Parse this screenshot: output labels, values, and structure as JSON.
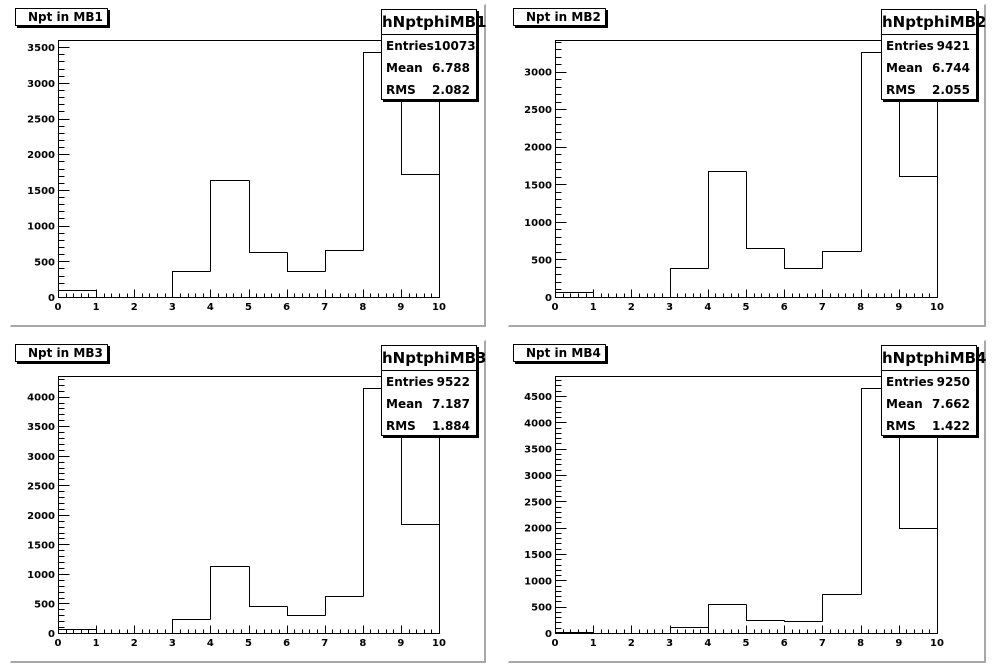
{
  "chart_data": [
    {
      "type": "histogram",
      "title": "Npt in MB1",
      "stats": {
        "name": "hNptphiMB1",
        "entries_label": "Entries",
        "entries": "10073",
        "mean_label": "Mean",
        "mean": "6.788",
        "rms_label": "RMS",
        "rms": "2.082"
      },
      "xlim": [
        0,
        10
      ],
      "ylim": [
        0,
        3600
      ],
      "yticks_major": [
        0,
        500,
        1000,
        1500,
        2000,
        2500,
        3000,
        3500
      ],
      "ytick_labels": [
        "0",
        "500",
        "1000",
        "1500",
        "2000",
        "2500",
        "3000",
        "3500"
      ],
      "xticks_major": [
        0,
        1,
        2,
        3,
        4,
        5,
        6,
        7,
        8,
        9,
        10
      ],
      "xtick_labels": [
        "0",
        "1",
        "2",
        "3",
        "4",
        "5",
        "6",
        "7",
        "8",
        "9",
        "10"
      ],
      "bin_edges": [
        0,
        1,
        2,
        3,
        4,
        5,
        6,
        7,
        8,
        9,
        10
      ],
      "values": [
        100,
        0,
        0,
        370,
        1640,
        630,
        370,
        660,
        3430,
        1720
      ]
    },
    {
      "type": "histogram",
      "title": "Npt in MB2",
      "stats": {
        "name": "hNptphiMB2",
        "entries_label": "Entries",
        "entries": "9421",
        "mean_label": "Mean",
        "mean": "6.744",
        "rms_label": "RMS",
        "rms": "2.055"
      },
      "xlim": [
        0,
        10
      ],
      "ylim": [
        0,
        3420
      ],
      "yticks_major": [
        0,
        500,
        1000,
        1500,
        2000,
        2500,
        3000
      ],
      "ytick_labels": [
        "0",
        "500",
        "1000",
        "1500",
        "2000",
        "2500",
        "3000"
      ],
      "xticks_major": [
        0,
        1,
        2,
        3,
        4,
        5,
        6,
        7,
        8,
        9,
        10
      ],
      "xtick_labels": [
        "0",
        "1",
        "2",
        "3",
        "4",
        "5",
        "6",
        "7",
        "8",
        "9",
        "10"
      ],
      "bin_edges": [
        0,
        1,
        2,
        3,
        4,
        5,
        6,
        7,
        8,
        9,
        10
      ],
      "values": [
        70,
        0,
        0,
        380,
        1680,
        650,
        380,
        610,
        3260,
        1610
      ]
    },
    {
      "type": "histogram",
      "title": "Npt in MB3",
      "stats": {
        "name": "hNptphiMB3",
        "entries_label": "Entries",
        "entries": "9522",
        "mean_label": "Mean",
        "mean": "7.187",
        "rms_label": "RMS",
        "rms": "1.884"
      },
      "xlim": [
        0,
        10
      ],
      "ylim": [
        0,
        4350
      ],
      "yticks_major": [
        0,
        500,
        1000,
        1500,
        2000,
        2500,
        3000,
        3500,
        4000
      ],
      "ytick_labels": [
        "0",
        "500",
        "1000",
        "1500",
        "2000",
        "2500",
        "3000",
        "3500",
        "4000"
      ],
      "xticks_major": [
        0,
        1,
        2,
        3,
        4,
        5,
        6,
        7,
        8,
        9,
        10
      ],
      "xtick_labels": [
        "0",
        "1",
        "2",
        "3",
        "4",
        "5",
        "6",
        "7",
        "8",
        "9",
        "10"
      ],
      "bin_edges": [
        0,
        1,
        2,
        3,
        4,
        5,
        6,
        7,
        8,
        9,
        10
      ],
      "values": [
        70,
        0,
        0,
        240,
        1130,
        460,
        300,
        620,
        4150,
        1840
      ]
    },
    {
      "type": "histogram",
      "title": "Npt in MB4",
      "stats": {
        "name": "hNptphiMB4",
        "entries_label": "Entries",
        "entries": "9250",
        "mean_label": "Mean",
        "mean": "7.662",
        "rms_label": "RMS",
        "rms": "1.422"
      },
      "xlim": [
        0,
        10
      ],
      "ylim": [
        0,
        4880
      ],
      "yticks_major": [
        0,
        500,
        1000,
        1500,
        2000,
        2500,
        3000,
        3500,
        4000,
        4500
      ],
      "ytick_labels": [
        "0",
        "500",
        "1000",
        "1500",
        "2000",
        "2500",
        "3000",
        "3500",
        "4000",
        "4500"
      ],
      "xticks_major": [
        0,
        1,
        2,
        3,
        4,
        5,
        6,
        7,
        8,
        9,
        10
      ],
      "xtick_labels": [
        "0",
        "1",
        "2",
        "3",
        "4",
        "5",
        "6",
        "7",
        "8",
        "9",
        "10"
      ],
      "bin_edges": [
        0,
        1,
        2,
        3,
        4,
        5,
        6,
        7,
        8,
        9,
        10
      ],
      "values": [
        20,
        0,
        0,
        120,
        550,
        240,
        220,
        740,
        4660,
        1990
      ]
    }
  ]
}
